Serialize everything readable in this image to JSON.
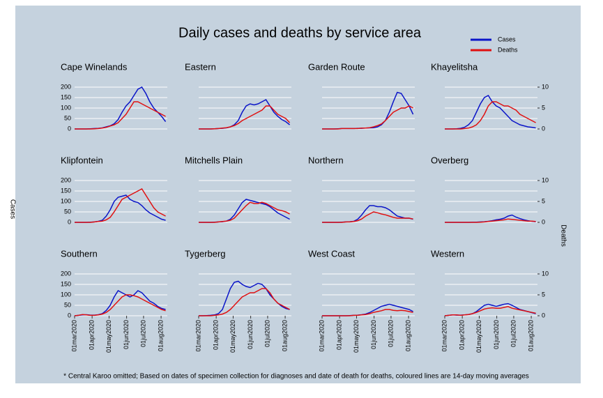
{
  "title": "Daily cases and deaths by service area",
  "legend": [
    {
      "name": "Cases",
      "color": "#0a14c8"
    },
    {
      "name": "Deaths",
      "color": "#e01010"
    }
  ],
  "y_label": "Cases",
  "y2_label": "Deaths",
  "note": "* Central Karoo omitted; Based on dates of specimen collection for diagnoses and date of death for deaths, coloured lines are 14-day moving averages",
  "x": [
    "2020-03-01",
    "2020-03-08",
    "2020-03-15",
    "2020-03-22",
    "2020-03-29",
    "2020-04-05",
    "2020-04-12",
    "2020-04-19",
    "2020-04-26",
    "2020-05-03",
    "2020-05-10",
    "2020-05-17",
    "2020-05-24",
    "2020-05-31",
    "2020-06-07",
    "2020-06-14",
    "2020-06-21",
    "2020-06-28",
    "2020-07-05",
    "2020-07-12",
    "2020-07-19",
    "2020-07-26",
    "2020-08-02",
    "2020-08-09"
  ],
  "xlim": [
    "2020-03-01",
    "2020-08-12"
  ],
  "xticks": [
    {
      "value": "2020-03-01",
      "label": "01mar2020"
    },
    {
      "value": "2020-04-01",
      "label": "01apr2020"
    },
    {
      "value": "2020-05-01",
      "label": "01may2020"
    },
    {
      "value": "2020-06-01",
      "label": "01jun2020"
    },
    {
      "value": "2020-07-01",
      "label": "01jul2020"
    },
    {
      "value": "2020-08-01",
      "label": "01aug2020"
    }
  ],
  "ylim": [
    0,
    200
  ],
  "yticks": [
    0,
    50,
    100,
    150,
    200
  ],
  "y2lim": [
    0,
    10
  ],
  "y2ticks": [
    0,
    5,
    10
  ],
  "grid": true,
  "chart_data": [
    {
      "type": "line",
      "title": "Cape Winelands",
      "series": [
        {
          "values": [
            0,
            0,
            0,
            0,
            1,
            2,
            3,
            5,
            10,
            15,
            25,
            45,
            80,
            110,
            130,
            160,
            190,
            200,
            170,
            130,
            100,
            80,
            60,
            35
          ]
        },
        {
          "axis": "y2",
          "values": [
            0,
            0,
            0,
            0,
            0,
            0.05,
            0.1,
            0.2,
            0.4,
            0.7,
            1,
            1.5,
            2.5,
            3.5,
            5,
            6.5,
            6.5,
            6,
            5.5,
            5,
            4.5,
            4,
            3.5,
            3
          ]
        }
      ]
    },
    {
      "type": "line",
      "title": "Eastern",
      "series": [
        {
          "values": [
            0,
            0,
            0,
            0,
            1,
            2,
            3,
            5,
            10,
            20,
            40,
            80,
            110,
            120,
            115,
            120,
            130,
            140,
            110,
            80,
            60,
            45,
            35,
            20
          ]
        },
        {
          "axis": "y2",
          "values": [
            0,
            0,
            0,
            0,
            0.05,
            0.1,
            0.2,
            0.3,
            0.5,
            0.8,
            1.3,
            2,
            2.5,
            3,
            3.5,
            4,
            4.5,
            5.5,
            5.5,
            4.5,
            3.5,
            3,
            2.5,
            1.5
          ]
        }
      ]
    },
    {
      "type": "line",
      "title": "Garden Route",
      "series": [
        {
          "values": [
            0,
            0,
            0,
            0,
            1,
            2,
            2,
            2,
            2,
            3,
            3,
            4,
            5,
            6,
            10,
            20,
            40,
            80,
            130,
            175,
            170,
            140,
            110,
            70
          ]
        },
        {
          "axis": "y2",
          "values": [
            0,
            0,
            0,
            0,
            0,
            0.1,
            0.1,
            0.1,
            0.1,
            0.1,
            0.2,
            0.2,
            0.3,
            0.5,
            0.8,
            1.2,
            2,
            3,
            4,
            4.5,
            5,
            5,
            5.5,
            5
          ]
        }
      ]
    },
    {
      "type": "line",
      "title": "Khayelitsha",
      "series": [
        {
          "values": [
            0,
            0,
            0,
            1,
            3,
            8,
            20,
            40,
            80,
            120,
            150,
            160,
            130,
            110,
            100,
            80,
            60,
            40,
            30,
            20,
            15,
            10,
            8,
            5
          ]
        },
        {
          "axis": "y2",
          "values": [
            0,
            0,
            0,
            0,
            0,
            0.1,
            0.2,
            0.5,
            1,
            2,
            3.5,
            5.5,
            6.5,
            6.5,
            6,
            5.5,
            5.5,
            5,
            4.5,
            3.5,
            3,
            2.5,
            2,
            1.5
          ]
        }
      ]
    },
    {
      "type": "line",
      "title": "Klipfontein",
      "series": [
        {
          "values": [
            0,
            0,
            0,
            0,
            1,
            2,
            5,
            10,
            30,
            60,
            100,
            120,
            125,
            130,
            110,
            100,
            95,
            80,
            60,
            45,
            35,
            25,
            15,
            10
          ]
        },
        {
          "axis": "y2",
          "values": [
            0,
            0,
            0,
            0,
            0,
            0.1,
            0.2,
            0.3,
            0.6,
            1.2,
            2.5,
            4,
            5.5,
            6,
            6.5,
            7,
            7.5,
            8,
            6.5,
            5,
            3.5,
            2.5,
            2,
            1.5
          ]
        }
      ]
    },
    {
      "type": "line",
      "title": "Mitchells Plain",
      "series": [
        {
          "values": [
            0,
            0,
            0,
            0,
            1,
            2,
            3,
            6,
            15,
            35,
            65,
            95,
            110,
            105,
            100,
            95,
            90,
            85,
            75,
            60,
            45,
            35,
            25,
            15
          ]
        },
        {
          "axis": "y2",
          "values": [
            0,
            0,
            0,
            0,
            0,
            0.1,
            0.2,
            0.3,
            0.5,
            1,
            2,
            3,
            4,
            4.8,
            4.5,
            4.5,
            4.8,
            4.5,
            4,
            3.5,
            3,
            2.8,
            2.5,
            2
          ]
        }
      ]
    },
    {
      "type": "line",
      "title": "Northern",
      "series": [
        {
          "values": [
            0,
            0,
            0,
            0,
            0,
            1,
            2,
            3,
            5,
            15,
            35,
            60,
            80,
            80,
            75,
            75,
            70,
            60,
            45,
            30,
            25,
            20,
            20,
            15
          ]
        },
        {
          "axis": "y2",
          "values": [
            0,
            0,
            0,
            0,
            0,
            0,
            0.1,
            0.1,
            0.2,
            0.4,
            0.8,
            1.5,
            2,
            2.5,
            2.3,
            2,
            1.8,
            1.5,
            1.2,
            1,
            1,
            1,
            1,
            0.8
          ]
        }
      ]
    },
    {
      "type": "line",
      "title": "Overberg",
      "series": [
        {
          "values": [
            0,
            0,
            0,
            0,
            0,
            0,
            0,
            1,
            1,
            2,
            3,
            5,
            8,
            12,
            15,
            20,
            30,
            35,
            25,
            18,
            12,
            8,
            5,
            3
          ]
        },
        {
          "axis": "y2",
          "values": [
            0,
            0,
            0,
            0,
            0,
            0,
            0,
            0,
            0,
            0.05,
            0.1,
            0.2,
            0.3,
            0.4,
            0.5,
            0.6,
            0.8,
            0.7,
            0.6,
            0.5,
            0.4,
            0.3,
            0.3,
            0.2
          ]
        }
      ]
    },
    {
      "type": "line",
      "title": "Southern",
      "series": [
        {
          "values": [
            0,
            2,
            4,
            5,
            3,
            3,
            5,
            10,
            25,
            50,
            90,
            120,
            110,
            100,
            90,
            100,
            120,
            110,
            90,
            70,
            60,
            45,
            35,
            30
          ]
        },
        {
          "axis": "y2",
          "values": [
            0,
            0.1,
            0.3,
            0.2,
            0.1,
            0.1,
            0.2,
            0.4,
            0.8,
            1.5,
            2.5,
            3.5,
            4.5,
            5,
            5,
            4.8,
            4.5,
            4,
            3.5,
            3,
            2.5,
            2,
            1.5,
            1.2
          ]
        }
      ]
    },
    {
      "type": "line",
      "title": "Tygerberg",
      "series": [
        {
          "values": [
            0,
            0,
            1,
            2,
            4,
            10,
            30,
            80,
            130,
            160,
            165,
            150,
            140,
            135,
            145,
            155,
            150,
            130,
            100,
            80,
            60,
            45,
            35,
            30
          ]
        },
        {
          "axis": "y2",
          "values": [
            0,
            0,
            0,
            0,
            0.1,
            0.2,
            0.4,
            0.8,
            1.5,
            2.5,
            3.5,
            4.5,
            5,
            5.5,
            5.5,
            6,
            6.5,
            6.5,
            5.5,
            4,
            3,
            2.5,
            2,
            1.5
          ]
        }
      ]
    },
    {
      "type": "line",
      "title": "West Coast",
      "series": [
        {
          "values": [
            0,
            0,
            0,
            0,
            0,
            0,
            0,
            1,
            2,
            3,
            5,
            8,
            15,
            25,
            35,
            45,
            50,
            55,
            50,
            45,
            40,
            35,
            30,
            20
          ]
        },
        {
          "axis": "y2",
          "values": [
            0,
            0,
            0,
            0,
            0,
            0,
            0,
            0,
            0.1,
            0.1,
            0.2,
            0.3,
            0.5,
            0.8,
            1,
            1.2,
            1.5,
            1.5,
            1.3,
            1.2,
            1.3,
            1.2,
            1,
            0.8
          ]
        }
      ]
    },
    {
      "type": "line",
      "title": "Western",
      "series": [
        {
          "values": [
            0,
            2,
            4,
            3,
            3,
            4,
            6,
            10,
            20,
            35,
            50,
            55,
            50,
            45,
            50,
            55,
            58,
            50,
            40,
            30,
            25,
            20,
            15,
            10
          ]
        },
        {
          "axis": "y2",
          "values": [
            0,
            0.1,
            0.2,
            0.2,
            0.1,
            0.2,
            0.3,
            0.5,
            0.8,
            1.2,
            1.6,
            1.8,
            1.9,
            1.8,
            1.8,
            2,
            2.2,
            1.8,
            1.6,
            1.4,
            1.2,
            1,
            0.8,
            0.6
          ]
        }
      ]
    }
  ]
}
